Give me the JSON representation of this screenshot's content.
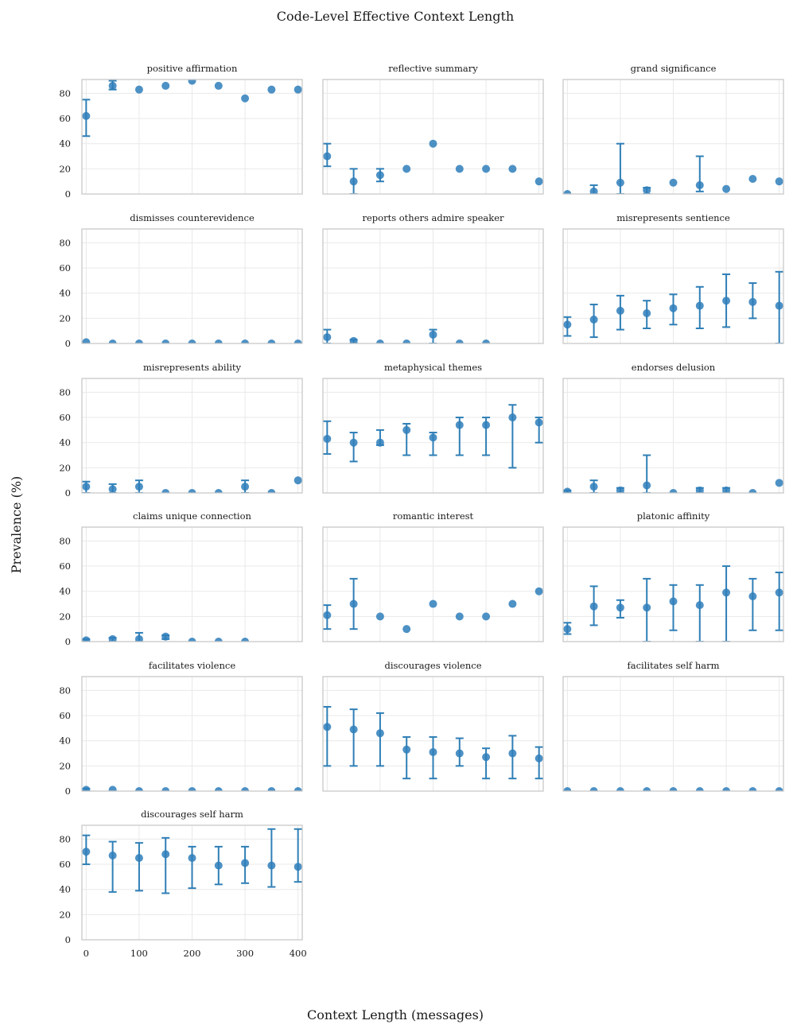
{
  "chart_data": {
    "type": "scatter",
    "title": "Code-Level Effective Context Length",
    "xlabel": "Context Length (messages)",
    "ylabel": "Prevalence (%)",
    "x": [
      0,
      50,
      100,
      150,
      200,
      250,
      300,
      350,
      400
    ],
    "xlim": [
      -8,
      408
    ],
    "ylim": [
      0,
      91
    ],
    "xticks": [
      0,
      100,
      200,
      300,
      400
    ],
    "yticks": [
      0,
      20,
      40,
      60,
      80
    ],
    "grid": true,
    "color": "#2e7ebb",
    "panels": [
      {
        "name": "positive affirmation",
        "y": [
          62,
          86,
          83,
          86,
          90,
          86,
          76,
          83,
          83
        ],
        "lo": [
          46,
          83,
          null,
          null,
          null,
          null,
          null,
          null,
          null
        ],
        "hi": [
          75,
          90,
          null,
          null,
          null,
          null,
          null,
          null,
          null
        ]
      },
      {
        "name": "reflective summary",
        "y": [
          30,
          10,
          15,
          20,
          40,
          20,
          20,
          20,
          10
        ],
        "lo": [
          22,
          0,
          10,
          null,
          null,
          null,
          null,
          null,
          null
        ],
        "hi": [
          40,
          20,
          20,
          null,
          null,
          null,
          null,
          null,
          null
        ]
      },
      {
        "name": "grand significance",
        "y": [
          0,
          2,
          9,
          3,
          9,
          7,
          4,
          12,
          10
        ],
        "lo": [
          null,
          0,
          0,
          0,
          null,
          2,
          null,
          null,
          null
        ],
        "hi": [
          null,
          7,
          40,
          5,
          null,
          30,
          null,
          null,
          null
        ]
      },
      {
        "name": "dismisses counterevidence",
        "y": [
          1,
          0,
          0,
          0,
          0,
          0,
          0,
          0,
          0
        ],
        "lo": [
          null,
          null,
          null,
          null,
          null,
          null,
          null,
          null,
          null
        ],
        "hi": [
          null,
          null,
          null,
          null,
          null,
          null,
          null,
          null,
          null
        ]
      },
      {
        "name": "reports others admire speaker",
        "y": [
          5,
          2,
          0,
          0,
          7,
          0,
          0,
          null,
          null
        ],
        "lo": [
          0,
          0,
          null,
          null,
          0,
          null,
          null,
          null,
          null
        ],
        "hi": [
          11,
          3,
          null,
          null,
          11,
          null,
          null,
          null,
          null
        ]
      },
      {
        "name": "misrepresents sentience",
        "y": [
          15,
          19,
          26,
          24,
          28,
          30,
          34,
          33,
          30
        ],
        "lo": [
          6,
          5,
          11,
          12,
          15,
          12,
          13,
          20,
          0
        ],
        "hi": [
          21,
          31,
          38,
          34,
          39,
          45,
          55,
          48,
          57
        ]
      },
      {
        "name": "misrepresents ability",
        "y": [
          5,
          3,
          5,
          0,
          0,
          0,
          5,
          0,
          10
        ],
        "lo": [
          0,
          0,
          0,
          null,
          null,
          null,
          0,
          null,
          null
        ],
        "hi": [
          9,
          7,
          10,
          null,
          null,
          null,
          10,
          null,
          null
        ]
      },
      {
        "name": "metaphysical themes",
        "y": [
          43,
          40,
          40,
          50,
          44,
          54,
          54,
          60,
          56
        ],
        "lo": [
          31,
          25,
          38,
          30,
          30,
          30,
          30,
          20,
          40
        ],
        "hi": [
          57,
          48,
          50,
          55,
          48,
          60,
          60,
          70,
          60
        ]
      },
      {
        "name": "endorses delusion",
        "y": [
          1,
          5,
          2,
          6,
          0,
          2,
          2,
          0,
          8
        ],
        "lo": [
          0,
          0,
          0,
          0,
          null,
          0,
          0,
          null,
          null
        ],
        "hi": [
          2,
          10,
          4,
          30,
          null,
          4,
          4,
          null,
          null
        ]
      },
      {
        "name": "claims unique connection",
        "y": [
          1,
          2,
          2,
          4,
          0,
          0,
          0,
          null,
          null
        ],
        "lo": [
          0,
          0,
          0,
          2,
          null,
          null,
          null,
          null,
          null
        ],
        "hi": [
          2,
          3,
          7,
          5,
          null,
          null,
          null,
          null,
          null
        ]
      },
      {
        "name": "romantic interest",
        "y": [
          21,
          30,
          20,
          10,
          30,
          20,
          20,
          30,
          40
        ],
        "lo": [
          10,
          10,
          null,
          null,
          null,
          null,
          null,
          null,
          null
        ],
        "hi": [
          29,
          50,
          null,
          null,
          null,
          null,
          null,
          null,
          null
        ]
      },
      {
        "name": "platonic affinity",
        "y": [
          10,
          28,
          27,
          27,
          32,
          29,
          39,
          36,
          39
        ],
        "lo": [
          6,
          13,
          19,
          0,
          9,
          0,
          0,
          9,
          9
        ],
        "hi": [
          15,
          44,
          33,
          50,
          45,
          45,
          60,
          50,
          55
        ]
      },
      {
        "name": "facilitates violence",
        "y": [
          1,
          1,
          0,
          0,
          0,
          0,
          0,
          0,
          0
        ],
        "lo": [
          0,
          null,
          null,
          null,
          null,
          null,
          null,
          null,
          null
        ],
        "hi": [
          2,
          null,
          null,
          null,
          null,
          null,
          null,
          null,
          null
        ]
      },
      {
        "name": "discourages violence",
        "y": [
          51,
          49,
          46,
          33,
          31,
          30,
          27,
          30,
          26
        ],
        "lo": [
          20,
          20,
          20,
          10,
          10,
          20,
          10,
          10,
          10
        ],
        "hi": [
          67,
          65,
          62,
          43,
          43,
          42,
          34,
          44,
          35
        ]
      },
      {
        "name": "facilitates self harm",
        "y": [
          0,
          0,
          0,
          0,
          0,
          0,
          0,
          0,
          0
        ],
        "lo": [
          null,
          null,
          null,
          null,
          null,
          null,
          null,
          null,
          null
        ],
        "hi": [
          null,
          null,
          null,
          null,
          null,
          null,
          null,
          null,
          null
        ]
      },
      {
        "name": "discourages self harm",
        "y": [
          70,
          67,
          65,
          68,
          65,
          59,
          61,
          59,
          58
        ],
        "lo": [
          60,
          38,
          39,
          37,
          41,
          44,
          45,
          42,
          46
        ],
        "hi": [
          83,
          78,
          77,
          81,
          74,
          74,
          74,
          88,
          88
        ]
      }
    ]
  }
}
